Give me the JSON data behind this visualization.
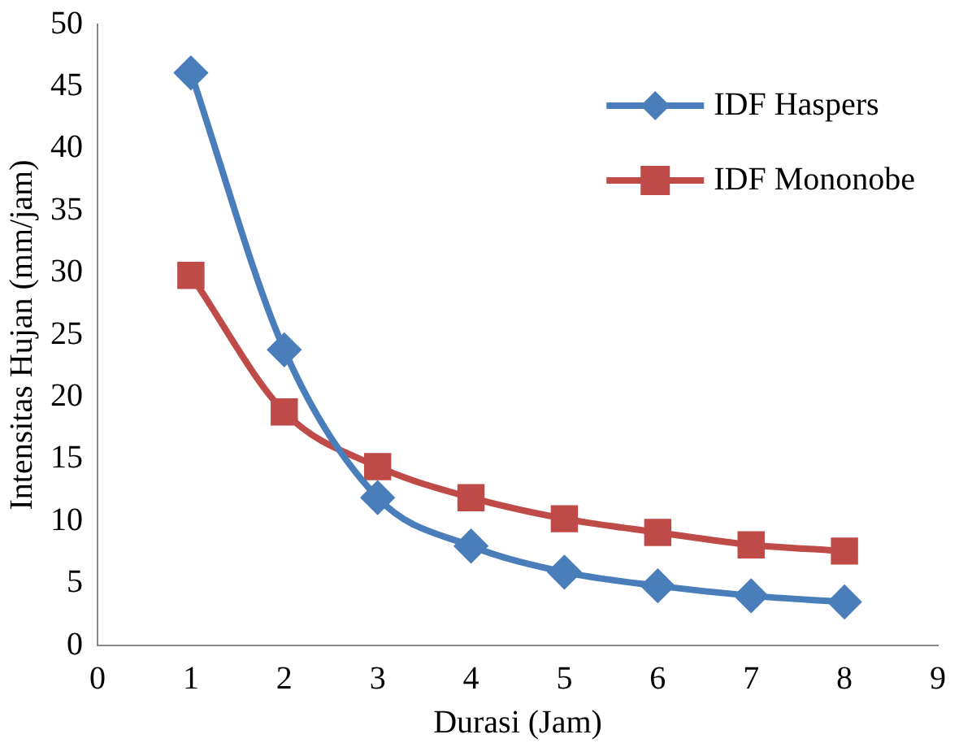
{
  "chart_data": {
    "type": "line",
    "xlabel": "Durasi (Jam)",
    "ylabel": "Intensitas Hujan (mm/jam)",
    "x": [
      1,
      2,
      3,
      4,
      5,
      6,
      7,
      8
    ],
    "series": [
      {
        "name": "IDF Haspers",
        "color": "#4a7ebb",
        "values": [
          46.1,
          23.8,
          11.9,
          8.0,
          5.9,
          4.8,
          4.0,
          3.5
        ],
        "marker": "diamond"
      },
      {
        "name": "IDF Mononobe",
        "color": "#be4b48",
        "values": [
          29.8,
          18.8,
          14.4,
          11.9,
          10.2,
          9.1,
          8.1,
          7.6
        ],
        "marker": "square"
      }
    ],
    "xlim": [
      0,
      9
    ],
    "xticks": [
      0,
      1,
      2,
      3,
      4,
      5,
      6,
      7,
      8,
      9
    ],
    "ylim": [
      0,
      50
    ],
    "yticks": [
      0,
      5,
      10,
      15,
      20,
      25,
      30,
      35,
      40,
      45,
      50
    ],
    "grid": false,
    "legend": "top right",
    "line_style": "solid"
  }
}
